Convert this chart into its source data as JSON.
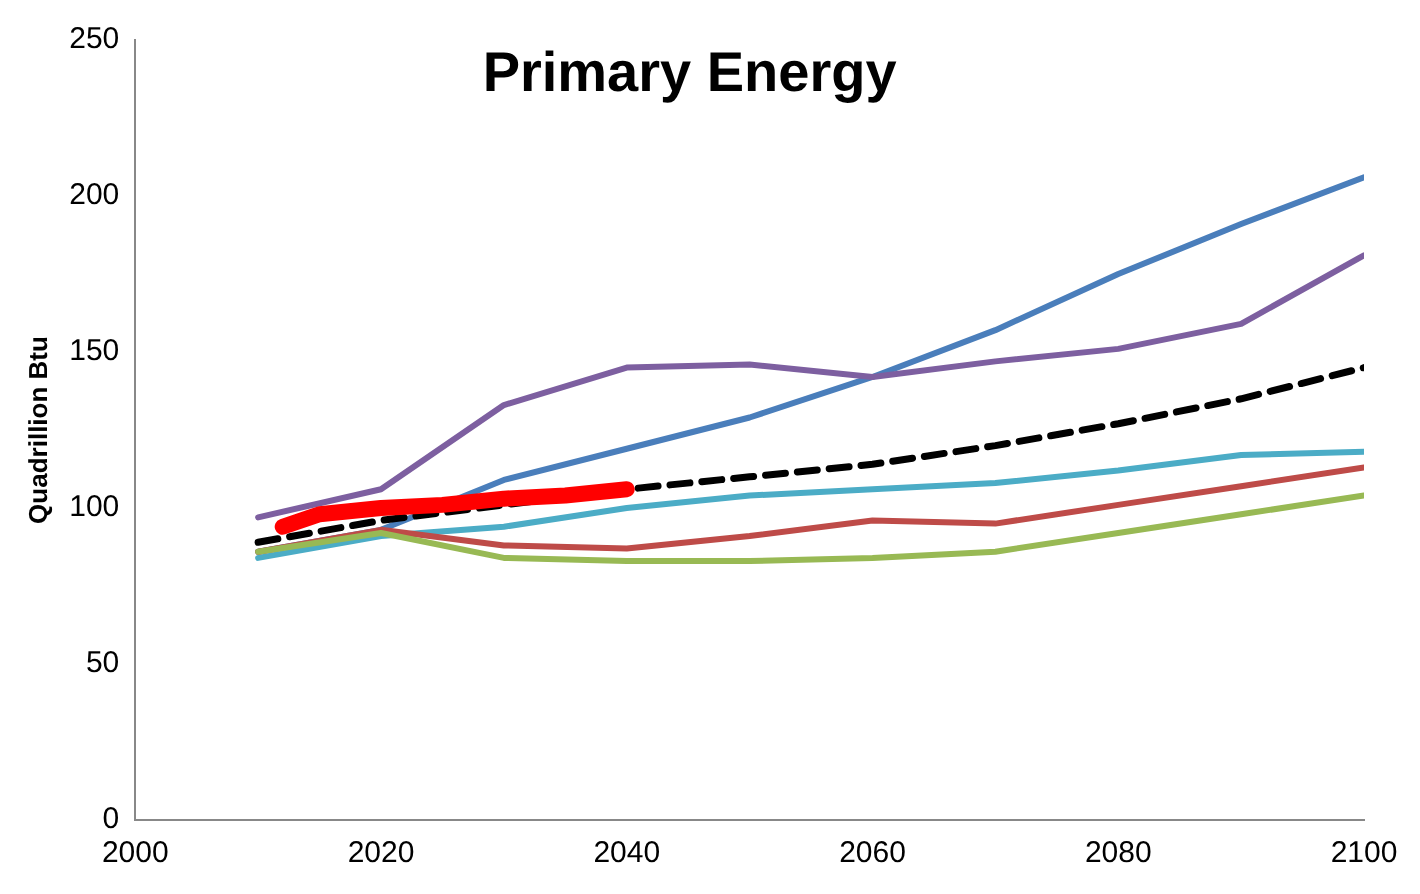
{
  "chart_data": {
    "type": "line",
    "title": "Primary Energy",
    "ylabel": "Quadrillion Btu",
    "x": [
      2010,
      2020,
      2030,
      2040,
      2050,
      2060,
      2070,
      2080,
      2090,
      2100
    ],
    "series": [
      {
        "color": "#4a7ebb",
        "values": [
          86,
          93,
          109,
          119,
          129,
          142,
          157,
          175,
          191,
          206
        ]
      },
      {
        "color": "#7d5fa0",
        "values": [
          97,
          106,
          133,
          145,
          146,
          142,
          147,
          151,
          159,
          181
        ]
      },
      {
        "color": "#4bacc6",
        "values": [
          84,
          91,
          94,
          100,
          104,
          106,
          108,
          112,
          117,
          118
        ]
      },
      {
        "color": "#be4b48",
        "values": [
          86,
          93,
          88,
          87,
          91,
          96,
          95,
          101,
          107,
          113
        ]
      },
      {
        "color": "#98b954",
        "values": [
          86,
          92,
          84,
          83,
          83,
          84,
          86,
          92,
          98,
          104
        ]
      },
      {
        "color": "#000000",
        "line_style": "dashed",
        "values": [
          89,
          96,
          101,
          106,
          110,
          114,
          120,
          127,
          135,
          145
        ]
      },
      {
        "color": "#ff0000",
        "x": [
          2012,
          2015,
          2020,
          2025,
          2030,
          2035,
          2040
        ],
        "values": [
          94,
          98,
          100,
          101,
          103,
          104,
          106
        ]
      }
    ],
    "xlim": [
      2000,
      2100
    ],
    "xticks": [
      2000,
      2020,
      2040,
      2060,
      2080,
      2100
    ],
    "ylim": [
      0,
      250
    ],
    "yticks": [
      0,
      50,
      100,
      150,
      200,
      250
    ],
    "grid": false,
    "legend": false,
    "marker": "none"
  }
}
